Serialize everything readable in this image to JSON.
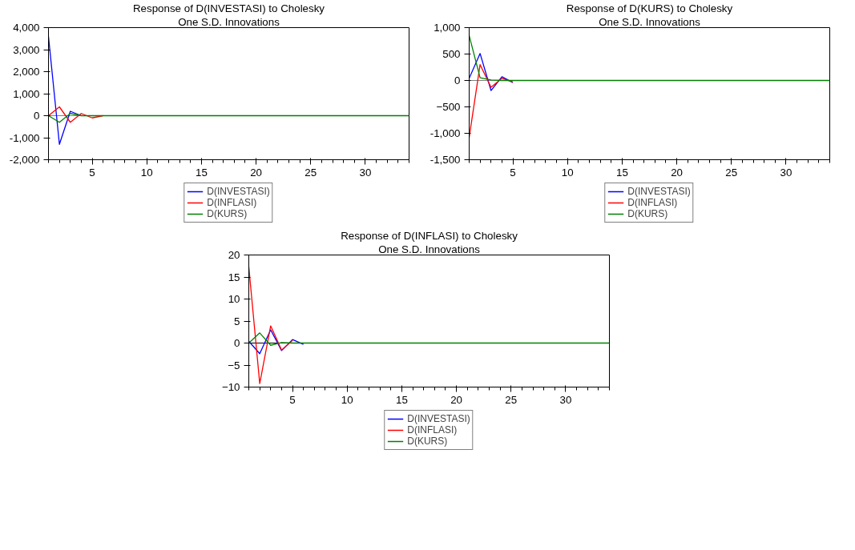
{
  "chart_data": [
    {
      "type": "line",
      "title": "Response of D(INVESTASI) to Cholesky",
      "subtitle": "One S.D. Innovations",
      "x": [
        1,
        2,
        3,
        4,
        5,
        6,
        7,
        8,
        9,
        10,
        11,
        12,
        13,
        14,
        15,
        16,
        17,
        18,
        19,
        20,
        21,
        22,
        23,
        24,
        25,
        26,
        27,
        28,
        29,
        30,
        31,
        32,
        33,
        34
      ],
      "xlim": [
        1,
        34
      ],
      "xticks": [
        5,
        10,
        15,
        20,
        25,
        30
      ],
      "ylim": [
        -2000,
        4000
      ],
      "yticks": [
        {
          "value": -2000,
          "label": "-2,000"
        },
        {
          "value": -1000,
          "label": "-1,000"
        },
        0,
        {
          "value": 1000,
          "label": "1,000"
        },
        {
          "value": 2000,
          "label": "2,000"
        },
        {
          "value": 3000,
          "label": "3,000"
        },
        {
          "value": 4000,
          "label": "4,000"
        }
      ],
      "grid": false,
      "legend": "bottom",
      "ref_lines": [
        {
          "axis": "y",
          "value": 0,
          "color": "#808080"
        }
      ],
      "series": [
        {
          "name": "D(INVESTASI)",
          "color": "#0000ff",
          "values": [
            3600,
            -1300,
            200,
            0,
            null,
            null,
            null,
            null,
            null,
            null,
            null,
            null,
            null,
            null,
            null,
            null,
            null,
            null,
            null,
            null,
            null,
            null,
            null,
            null,
            null,
            null,
            null,
            null,
            null,
            null,
            null,
            null,
            null,
            null
          ]
        },
        {
          "name": "D(INFLASI)",
          "color": "#ff0000",
          "values": [
            0,
            400,
            -300,
            100,
            -100,
            0,
            null,
            null,
            null,
            null,
            null,
            null,
            null,
            null,
            null,
            null,
            null,
            null,
            null,
            null,
            null,
            null,
            null,
            null,
            null,
            null,
            null,
            null,
            null,
            null,
            null,
            null,
            null,
            null
          ]
        },
        {
          "name": "D(KURS)",
          "color": "#008000",
          "values": [
            0,
            -300,
            100,
            0,
            0,
            0,
            0,
            0,
            0,
            0,
            0,
            0,
            0,
            0,
            0,
            0,
            0,
            0,
            0,
            0,
            0,
            0,
            0,
            0,
            0,
            0,
            0,
            0,
            0,
            0,
            0,
            0,
            0,
            0
          ]
        }
      ]
    },
    {
      "type": "line",
      "title": "Response of D(KURS) to Cholesky",
      "subtitle": "One S.D. Innovations",
      "x": [
        1,
        2,
        3,
        4,
        5,
        6,
        7,
        8,
        9,
        10,
        11,
        12,
        13,
        14,
        15,
        16,
        17,
        18,
        19,
        20,
        21,
        22,
        23,
        24,
        25,
        26,
        27,
        28,
        29,
        30,
        31,
        32,
        33,
        34
      ],
      "xlim": [
        1,
        34
      ],
      "xticks": [
        5,
        10,
        15,
        20,
        25,
        30
      ],
      "ylim": [
        -1500,
        1000
      ],
      "yticks": [
        {
          "value": -1500,
          "label": "-1,500"
        },
        {
          "value": -1000,
          "label": "-1,000"
        },
        -500,
        0,
        500,
        {
          "value": 1000,
          "label": "1,000"
        }
      ],
      "grid": false,
      "legend": "bottom",
      "ref_lines": [
        {
          "axis": "y",
          "value": 0,
          "color": "#808080"
        }
      ],
      "series": [
        {
          "name": "D(INVESTASI)",
          "color": "#0000ff",
          "values": [
            40,
            510,
            -190,
            70,
            -40,
            null,
            null,
            null,
            null,
            null,
            null,
            null,
            null,
            null,
            null,
            null,
            null,
            null,
            null,
            null,
            null,
            null,
            null,
            null,
            null,
            null,
            null,
            null,
            null,
            null,
            null,
            null,
            null,
            null
          ]
        },
        {
          "name": "D(INFLASI)",
          "color": "#ff0000",
          "values": [
            -1080,
            300,
            -130,
            40,
            -30,
            null,
            null,
            null,
            null,
            null,
            null,
            null,
            null,
            null,
            null,
            null,
            null,
            null,
            null,
            null,
            null,
            null,
            null,
            null,
            null,
            null,
            null,
            null,
            null,
            null,
            null,
            null,
            null,
            null
          ]
        },
        {
          "name": "D(KURS)",
          "color": "#008000",
          "values": [
            850,
            50,
            10,
            0,
            0,
            0,
            0,
            0,
            0,
            0,
            0,
            0,
            0,
            0,
            0,
            0,
            0,
            0,
            0,
            0,
            0,
            0,
            0,
            0,
            0,
            0,
            0,
            0,
            0,
            0,
            0,
            0,
            0,
            0
          ]
        }
      ]
    },
    {
      "type": "line",
      "title": "Response of D(INFLASI) to Cholesky",
      "subtitle": "One S.D. Innovations",
      "x": [
        1,
        2,
        3,
        4,
        5,
        6,
        7,
        8,
        9,
        10,
        11,
        12,
        13,
        14,
        15,
        16,
        17,
        18,
        19,
        20,
        21,
        22,
        23,
        24,
        25,
        26,
        27,
        28,
        29,
        30,
        31,
        32,
        33,
        34
      ],
      "xlim": [
        1,
        34
      ],
      "xticks": [
        5,
        10,
        15,
        20,
        25,
        30
      ],
      "ylim": [
        -10,
        20
      ],
      "yticks": [
        -10,
        -5,
        0,
        5,
        10,
        15,
        20
      ],
      "grid": false,
      "legend": "bottom",
      "ref_lines": [
        {
          "axis": "y",
          "value": 0,
          "color": "#000000"
        }
      ],
      "series": [
        {
          "name": "D(INVESTASI)",
          "color": "#0000ff",
          "values": [
            0.4,
            -2.4,
            3.0,
            -1.7,
            0.8,
            -0.3,
            null,
            null,
            null,
            null,
            null,
            null,
            null,
            null,
            null,
            null,
            null,
            null,
            null,
            null,
            null,
            null,
            null,
            null,
            null,
            null,
            null,
            null,
            null,
            null,
            null,
            null,
            null,
            null
          ]
        },
        {
          "name": "D(INFLASI)",
          "color": "#ff0000",
          "values": [
            17.3,
            -9.2,
            3.9,
            -1.6,
            0.6,
            null,
            null,
            null,
            null,
            null,
            null,
            null,
            null,
            null,
            null,
            null,
            null,
            null,
            null,
            null,
            null,
            null,
            null,
            null,
            null,
            null,
            null,
            null,
            null,
            null,
            null,
            null,
            null,
            null
          ]
        },
        {
          "name": "D(KURS)",
          "color": "#008000",
          "values": [
            0,
            2.3,
            -0.5,
            0.1,
            0,
            0,
            0,
            0,
            0,
            0,
            0,
            0,
            0,
            0,
            0,
            0,
            0,
            0,
            0,
            0,
            0,
            0,
            0,
            0,
            0,
            0,
            0,
            0,
            0,
            0,
            0,
            0,
            0,
            0
          ]
        }
      ]
    }
  ]
}
